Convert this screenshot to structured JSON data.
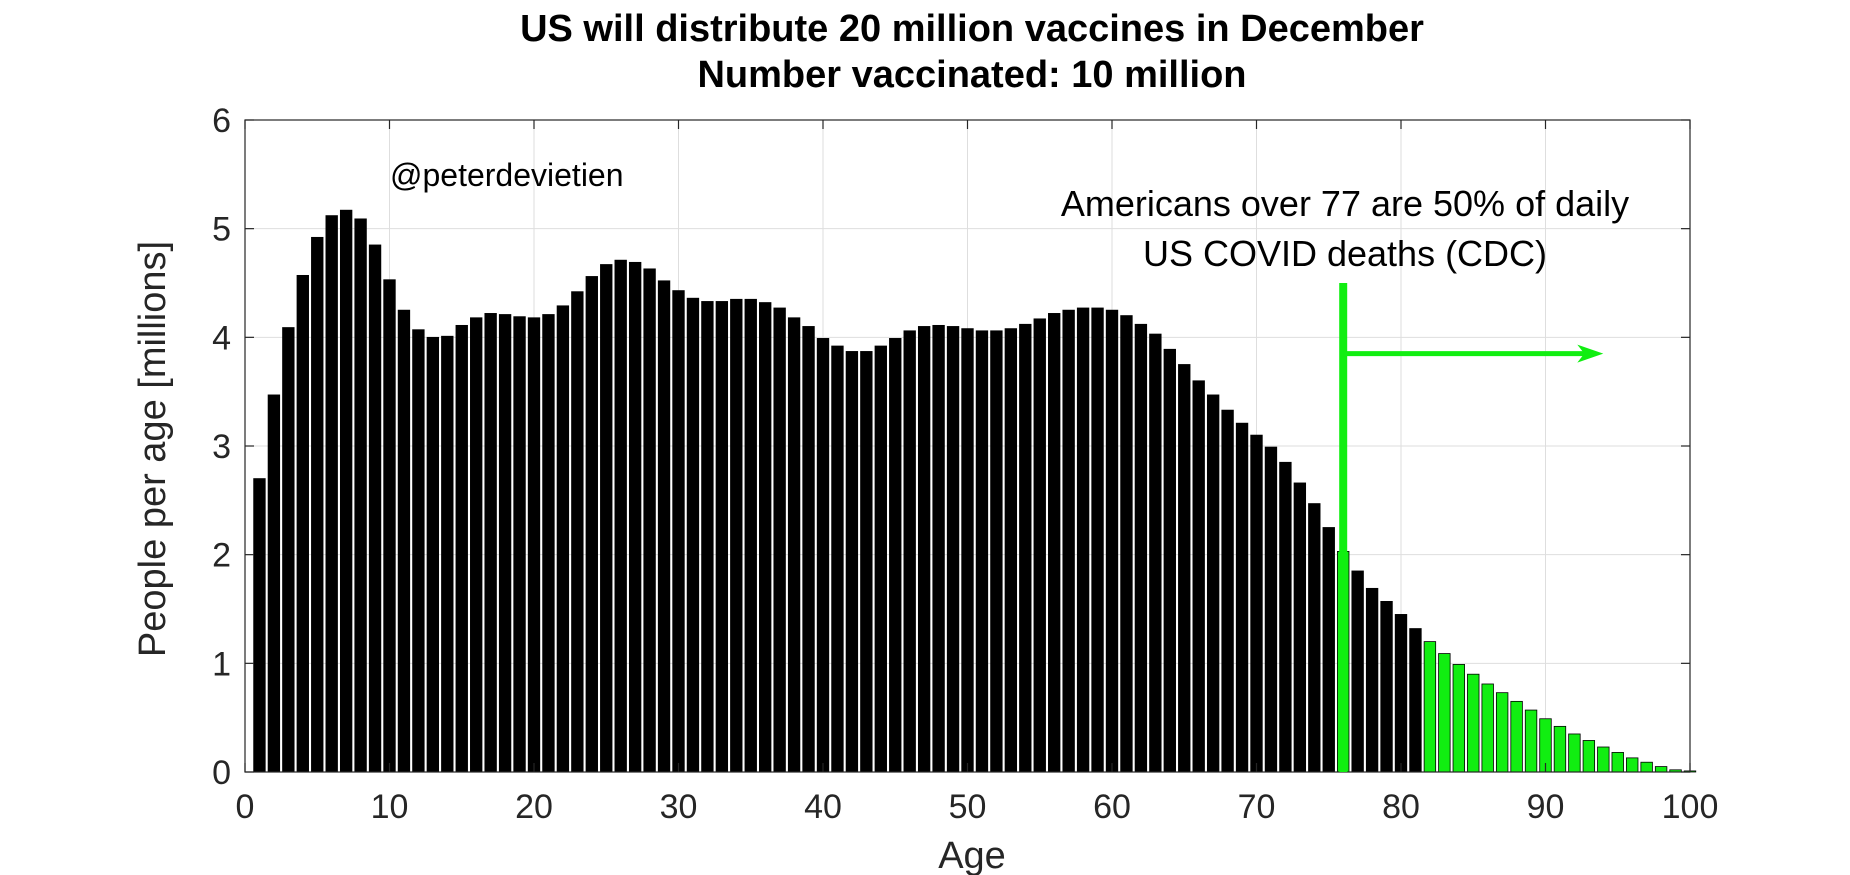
{
  "chart_data": {
    "type": "bar",
    "title": "US will distribute 20 million vaccines in December",
    "subtitle": "Number vaccinated: 10 million",
    "xlabel": "Age",
    "ylabel": "People per age [millions]",
    "xlim": [
      0,
      100
    ],
    "ylim": [
      0,
      6
    ],
    "xticks": [
      0,
      10,
      20,
      30,
      40,
      50,
      60,
      70,
      80,
      90,
      100
    ],
    "yticks": [
      0,
      1,
      2,
      3,
      4,
      5,
      6
    ],
    "grid": true,
    "x": [
      1,
      2,
      3,
      4,
      5,
      6,
      7,
      8,
      9,
      10,
      11,
      12,
      13,
      14,
      15,
      16,
      17,
      18,
      19,
      20,
      21,
      22,
      23,
      24,
      25,
      26,
      27,
      28,
      29,
      30,
      31,
      32,
      33,
      34,
      35,
      36,
      37,
      38,
      39,
      40,
      41,
      42,
      43,
      44,
      45,
      46,
      47,
      48,
      49,
      50,
      51,
      52,
      53,
      54,
      55,
      56,
      57,
      58,
      59,
      60,
      61,
      62,
      63,
      64,
      65,
      66,
      67,
      68,
      69,
      70,
      71,
      72,
      73,
      74,
      75,
      76,
      77,
      78,
      79,
      80,
      81,
      82,
      83,
      84,
      85,
      86,
      87,
      88,
      89,
      90,
      91,
      92,
      93,
      94,
      95,
      96,
      97,
      98,
      99,
      100
    ],
    "values": [
      2.7,
      3.47,
      4.09,
      4.57,
      4.92,
      5.12,
      5.17,
      5.09,
      4.85,
      4.53,
      4.25,
      4.07,
      4.0,
      4.01,
      4.11,
      4.18,
      4.22,
      4.21,
      4.19,
      4.18,
      4.21,
      4.29,
      4.42,
      4.56,
      4.67,
      4.71,
      4.69,
      4.63,
      4.52,
      4.43,
      4.36,
      4.33,
      4.33,
      4.35,
      4.35,
      4.32,
      4.27,
      4.18,
      4.1,
      3.99,
      3.92,
      3.87,
      3.87,
      3.92,
      3.99,
      4.06,
      4.1,
      4.11,
      4.1,
      4.08,
      4.06,
      4.06,
      4.08,
      4.12,
      4.17,
      4.22,
      4.25,
      4.27,
      4.27,
      4.25,
      4.2,
      4.12,
      4.03,
      3.89,
      3.75,
      3.6,
      3.47,
      3.33,
      3.21,
      3.1,
      2.99,
      2.85,
      2.66,
      2.47,
      2.25,
      2.03,
      1.85,
      1.69,
      1.57,
      1.45,
      1.32,
      1.2,
      1.09,
      0.99,
      0.9,
      0.81,
      0.73,
      0.65,
      0.57,
      0.49,
      0.42,
      0.35,
      0.29,
      0.23,
      0.18,
      0.13,
      0.09,
      0.05,
      0.02,
      0.01
    ],
    "bar_colors": {
      "default": "#000000",
      "highlight": "#11ee11"
    },
    "highlight_ranges": [
      [
        76,
        76
      ],
      [
        82,
        100
      ]
    ],
    "annotation": {
      "line1": "Americans over 77 are 50% of daily",
      "line2": "US COVID deaths (CDC)",
      "marker_x": 76,
      "marker_top_y": 4.5,
      "arrow_y": 3.85,
      "arrow_end_x": 94,
      "color": "#11ee11"
    },
    "watermark": "@peterdevietien"
  }
}
